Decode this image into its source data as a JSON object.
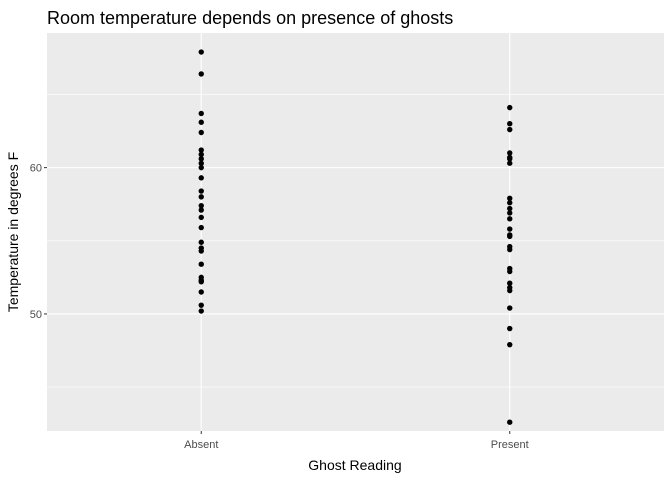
{
  "chart_data": {
    "type": "scatter",
    "title": "Room temperature depends on presence of ghosts",
    "xlabel": "Ghost Reading",
    "ylabel": "Temperature in degrees F",
    "categories": [
      "Absent",
      "Present"
    ],
    "ylim": [
      42,
      69.2
    ],
    "y_ticks": [
      50,
      60
    ],
    "y_tick_labels": [
      "50",
      "60"
    ],
    "grid": true,
    "colors": {
      "panel": "#ebebeb",
      "grid": "#ffffff",
      "point": "#000000"
    },
    "series": [
      {
        "category": "Absent",
        "values": [
          67.9,
          66.4,
          63.7,
          63.1,
          62.4,
          61.2,
          60.9,
          60.6,
          60.3,
          60.0,
          59.3,
          58.4,
          58.0,
          57.4,
          57.1,
          56.6,
          55.9,
          54.9,
          54.5,
          54.3,
          53.4,
          52.5,
          52.3,
          52.2,
          51.5,
          50.6,
          50.2
        ]
      },
      {
        "category": "Present",
        "values": [
          64.1,
          63.0,
          62.6,
          61.0,
          60.7,
          60.6,
          60.3,
          57.9,
          57.6,
          57.2,
          56.9,
          56.5,
          55.8,
          55.4,
          55.3,
          54.6,
          54.4,
          53.1,
          52.9,
          52.1,
          51.8,
          51.6,
          50.4,
          49.0,
          47.9,
          42.6
        ]
      }
    ]
  }
}
